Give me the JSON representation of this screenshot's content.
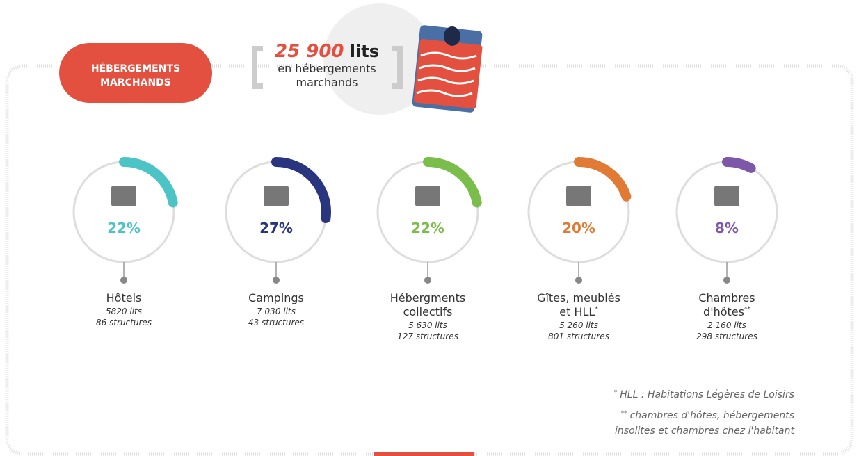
{
  "header": {
    "badge_line1": "HÉBERGEMENTS",
    "badge_line2": "MARCHANDS",
    "total": "25 900",
    "total_unit": "lits",
    "total_caption_line1": "en hébergements",
    "total_caption_line2": "marchands"
  },
  "items": [
    {
      "name": [
        "Hôtels"
      ],
      "percent": 22,
      "percent_label": "22%",
      "beds": "5820 lits",
      "structures": "86 structures",
      "color": "#4cc4c6"
    },
    {
      "name": [
        "Campings"
      ],
      "percent": 27,
      "percent_label": "27%",
      "beds": "7 030 lits",
      "structures": "43 structures",
      "color": "#2a3580"
    },
    {
      "name": [
        "Hébergments",
        "collectifs"
      ],
      "percent": 22,
      "percent_label": "22%",
      "beds": "5 630 lits",
      "structures": "127 structures",
      "color": "#7bbd4a"
    },
    {
      "name": [
        "Gîtes, meublés",
        "et HLL"
      ],
      "note": "*",
      "percent": 20,
      "percent_label": "20%",
      "beds": "5 260 lits",
      "structures": "801 structures",
      "color": "#e07a35"
    },
    {
      "name": [
        "Chambres",
        "d'hôtes"
      ],
      "note": "**",
      "percent": 8,
      "percent_label": "8%",
      "beds": "2 160 lits",
      "structures": "298 structures",
      "color": "#7d57a8"
    }
  ],
  "footnotes": [
    {
      "mark": "*",
      "text": "HLL : Habitations Légères de Loisirs"
    },
    {
      "mark": "**",
      "text": "chambres d'hôtes, hébergements",
      "text2": "insolites et chambres chez l'habitant"
    }
  ]
}
